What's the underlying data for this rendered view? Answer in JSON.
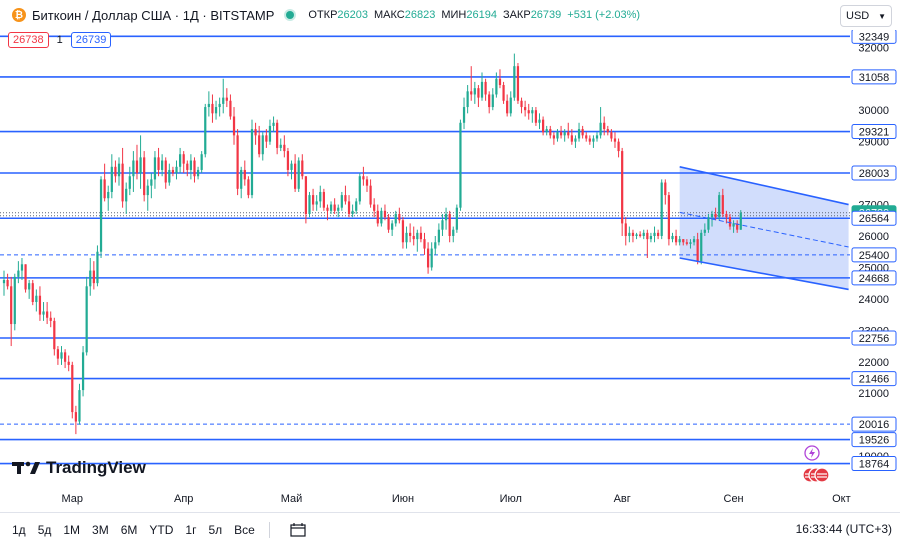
{
  "header": {
    "symbol_title": "Биткоин / Доллар США · 1Д · BITSTAMP",
    "ohlc": [
      {
        "key": "ОТКР",
        "value": "26203"
      },
      {
        "key": "МАКС",
        "value": "26823"
      },
      {
        "key": "МИН",
        "value": "26194"
      },
      {
        "key": "ЗАКР",
        "value": "26739"
      }
    ],
    "change": "+531 (+2.03%)",
    "currency": "USD"
  },
  "price_boxes": {
    "bid": "26738",
    "spread": "1",
    "ask": "26739"
  },
  "bottom_bar": {
    "ranges": [
      "1д",
      "5д",
      "1М",
      "3М",
      "6М",
      "YTD",
      "1г",
      "5л",
      "Все"
    ],
    "clock": "16:33:44 (UTC+3)"
  },
  "brand": "TradingView",
  "colors": {
    "up": "#22ab94",
    "down": "#f23645",
    "level": "#2962ff",
    "channel_fill": "#c2d2fb"
  },
  "chart_data": {
    "type": "candlestick",
    "title": "",
    "y_axis_ticks": [
      19000,
      20000,
      21000,
      22000,
      23000,
      24000,
      25000,
      26000,
      27000,
      28000,
      29000,
      30000,
      31000,
      32000
    ],
    "x_axis_ticks": [
      "Мар",
      "Апр",
      "Май",
      "Июн",
      "Июл",
      "Авг",
      "Сен",
      "Окт"
    ],
    "ylim": [
      18050,
      32550
    ],
    "horizontal_levels": [
      32349,
      31058,
      29321,
      28003,
      26564,
      25400,
      24668,
      22756,
      21466,
      20016,
      19526,
      18764
    ],
    "dashed_levels": [
      25400,
      20016
    ],
    "last_price": 26739,
    "axis_labels": [
      "32349",
      "31058",
      "29321",
      "28003",
      "26739",
      "26564",
      "25400",
      "24668",
      "22756",
      "21466",
      "20016",
      "19526",
      "18764"
    ],
    "channel": {
      "upper": [
        [
          "2023-08-17",
          28200
        ],
        [
          "2023-10-03",
          27000
        ]
      ],
      "lower": [
        [
          "2023-08-17",
          25300
        ],
        [
          "2023-10-03",
          24300
        ]
      ],
      "mid": [
        [
          "2023-08-17",
          26750
        ],
        [
          "2023-10-03",
          25650
        ]
      ]
    },
    "start_date": "2023-02-10",
    "candles": [
      [
        24500,
        24900,
        24100,
        24600
      ],
      [
        24600,
        24800,
        24300,
        24400
      ],
      [
        24400,
        24700,
        22500,
        23200
      ],
      [
        23200,
        24800,
        23000,
        24700
      ],
      [
        24700,
        25200,
        24500,
        24900
      ],
      [
        24900,
        25300,
        24600,
        25100
      ],
      [
        25100,
        25100,
        24200,
        24300
      ],
      [
        24300,
        24600,
        24000,
        24500
      ],
      [
        24500,
        24600,
        23800,
        23900
      ],
      [
        23900,
        24300,
        23600,
        24100
      ],
      [
        24100,
        24400,
        23300,
        23500
      ],
      [
        23500,
        23900,
        23300,
        23600
      ],
      [
        23600,
        23900,
        23200,
        23400
      ],
      [
        23400,
        23600,
        23100,
        23300
      ],
      [
        23300,
        23400,
        22200,
        22400
      ],
      [
        22400,
        22500,
        21900,
        22100
      ],
      [
        22100,
        22500,
        21900,
        22300
      ],
      [
        22300,
        22400,
        21800,
        22000
      ],
      [
        22000,
        22200,
        21700,
        21900
      ],
      [
        21900,
        22000,
        20200,
        20400
      ],
      [
        20400,
        20600,
        19700,
        20100
      ],
      [
        20100,
        21300,
        20000,
        21100
      ],
      [
        21100,
        22500,
        20900,
        22300
      ],
      [
        22300,
        24700,
        22200,
        24400
      ],
      [
        24400,
        25300,
        24100,
        24900
      ],
      [
        24900,
        25200,
        24300,
        24500
      ],
      [
        24500,
        25700,
        24400,
        25500
      ],
      [
        25500,
        27900,
        25300,
        27800
      ],
      [
        27800,
        28300,
        27100,
        27200
      ],
      [
        27200,
        27600,
        26800,
        27400
      ],
      [
        27400,
        28600,
        27200,
        28200
      ],
      [
        28200,
        28400,
        27700,
        27900
      ],
      [
        27900,
        28500,
        27600,
        28300
      ],
      [
        28300,
        28800,
        26900,
        27100
      ],
      [
        27100,
        27700,
        26700,
        27500
      ],
      [
        27500,
        28200,
        27300,
        27900
      ],
      [
        27900,
        28700,
        27400,
        28400
      ],
      [
        28400,
        28900,
        27800,
        28000
      ],
      [
        28000,
        29200,
        27500,
        28500
      ],
      [
        28500,
        28700,
        27100,
        27300
      ],
      [
        27300,
        27800,
        26800,
        27600
      ],
      [
        27600,
        28000,
        27200,
        27800
      ],
      [
        27800,
        28700,
        27500,
        28500
      ],
      [
        28500,
        28800,
        27900,
        28100
      ],
      [
        28100,
        28600,
        27900,
        28400
      ],
      [
        28400,
        28500,
        27500,
        27700
      ],
      [
        27700,
        28300,
        27600,
        28100
      ],
      [
        28100,
        28200,
        27900,
        28000
      ],
      [
        28000,
        28400,
        27800,
        28200
      ],
      [
        28200,
        28800,
        28000,
        28600
      ],
      [
        28600,
        28700,
        28000,
        28300
      ],
      [
        28300,
        28400,
        27900,
        28100
      ],
      [
        28100,
        28600,
        27800,
        28400
      ],
      [
        28400,
        28500,
        27700,
        27900
      ],
      [
        27900,
        28200,
        27800,
        28100
      ],
      [
        28100,
        28700,
        28000,
        28600
      ],
      [
        28600,
        30200,
        28500,
        30100
      ],
      [
        30100,
        30600,
        29800,
        30200
      ],
      [
        30200,
        30500,
        29600,
        29900
      ],
      [
        29900,
        30300,
        29700,
        30100
      ],
      [
        30100,
        30400,
        29800,
        30200
      ],
      [
        30200,
        31000,
        29900,
        30400
      ],
      [
        30400,
        30700,
        30100,
        30300
      ],
      [
        30300,
        30500,
        29700,
        29800
      ],
      [
        29800,
        30100,
        28900,
        29200
      ],
      [
        29200,
        29400,
        27300,
        27500
      ],
      [
        27500,
        28200,
        27200,
        28100
      ],
      [
        28100,
        28400,
        27600,
        27800
      ],
      [
        27800,
        27900,
        27200,
        27300
      ],
      [
        27300,
        29700,
        27200,
        29400
      ],
      [
        29400,
        29600,
        28900,
        29200
      ],
      [
        29200,
        29500,
        28500,
        28600
      ],
      [
        28600,
        29300,
        28400,
        29200
      ],
      [
        29200,
        29400,
        28800,
        29000
      ],
      [
        29000,
        29700,
        28900,
        29500
      ],
      [
        29500,
        29800,
        29300,
        29600
      ],
      [
        29600,
        29700,
        28600,
        28800
      ],
      [
        28800,
        29100,
        28700,
        28900
      ],
      [
        28900,
        29200,
        28500,
        28700
      ],
      [
        28700,
        28800,
        27900,
        28100
      ],
      [
        28100,
        28400,
        27800,
        28300
      ],
      [
        28300,
        28600,
        27400,
        27500
      ],
      [
        27500,
        28500,
        27400,
        28400
      ],
      [
        28400,
        28600,
        27800,
        27900
      ],
      [
        27900,
        27900,
        26400,
        26700
      ],
      [
        26700,
        27400,
        26600,
        27300
      ],
      [
        27300,
        27500,
        26800,
        27000
      ],
      [
        27000,
        27300,
        26800,
        27100
      ],
      [
        27100,
        27600,
        26900,
        27400
      ],
      [
        27400,
        27500,
        26800,
        26900
      ],
      [
        26900,
        27000,
        26500,
        26800
      ],
      [
        26800,
        27100,
        26700,
        27000
      ],
      [
        27000,
        27200,
        26700,
        26800
      ],
      [
        26800,
        27000,
        26600,
        26900
      ],
      [
        26900,
        27400,
        26800,
        27300
      ],
      [
        27300,
        27600,
        27000,
        27100
      ],
      [
        27100,
        27300,
        26600,
        26700
      ],
      [
        26700,
        27000,
        26600,
        26800
      ],
      [
        26800,
        27200,
        26700,
        27100
      ],
      [
        27100,
        28000,
        27000,
        27900
      ],
      [
        27900,
        28200,
        27600,
        27800
      ],
      [
        27800,
        27900,
        27400,
        27600
      ],
      [
        27600,
        27800,
        26900,
        27000
      ],
      [
        27000,
        27200,
        26600,
        26800
      ],
      [
        26800,
        27000,
        26300,
        26400
      ],
      [
        26400,
        26900,
        26300,
        26800
      ],
      [
        26800,
        27000,
        26500,
        26600
      ],
      [
        26600,
        26700,
        26100,
        26200
      ],
      [
        26200,
        26500,
        26000,
        26400
      ],
      [
        26400,
        26800,
        26300,
        26700
      ],
      [
        26700,
        26900,
        26400,
        26500
      ],
      [
        26500,
        26600,
        25600,
        25800
      ],
      [
        25800,
        26300,
        25600,
        26100
      ],
      [
        26100,
        26400,
        25800,
        26000
      ],
      [
        26000,
        26300,
        25700,
        25900
      ],
      [
        25900,
        26200,
        25500,
        26100
      ],
      [
        26100,
        26300,
        25800,
        25900
      ],
      [
        25900,
        26100,
        25400,
        25600
      ],
      [
        25600,
        25800,
        24800,
        25000
      ],
      [
        25000,
        25800,
        24900,
        25600
      ],
      [
        25600,
        26000,
        25400,
        25800
      ],
      [
        25800,
        26400,
        25700,
        26200
      ],
      [
        26200,
        26700,
        26000,
        26500
      ],
      [
        26500,
        26900,
        26200,
        26700
      ],
      [
        26700,
        26800,
        25800,
        26000
      ],
      [
        26000,
        26300,
        25800,
        26200
      ],
      [
        26200,
        27000,
        26100,
        26900
      ],
      [
        26900,
        29700,
        26800,
        29600
      ],
      [
        29600,
        30400,
        29400,
        30100
      ],
      [
        30100,
        30800,
        29900,
        30600
      ],
      [
        30600,
        31400,
        30300,
        30500
      ],
      [
        30500,
        30900,
        30200,
        30700
      ],
      [
        30700,
        30800,
        30100,
        30400
      ],
      [
        30400,
        31200,
        30300,
        30900
      ],
      [
        30900,
        31000,
        30300,
        30500
      ],
      [
        30500,
        30600,
        29900,
        30100
      ],
      [
        30100,
        30700,
        30000,
        30500
      ],
      [
        30500,
        31200,
        30400,
        31000
      ],
      [
        31000,
        31300,
        30700,
        30800
      ],
      [
        30800,
        30900,
        30200,
        30300
      ],
      [
        30300,
        30500,
        29800,
        29900
      ],
      [
        29900,
        30600,
        29800,
        30400
      ],
      [
        30400,
        31800,
        30300,
        31400
      ],
      [
        31400,
        31500,
        30200,
        30300
      ],
      [
        30300,
        30400,
        29900,
        30100
      ],
      [
        30100,
        30300,
        29800,
        30000
      ],
      [
        30000,
        30200,
        29700,
        29900
      ],
      [
        29900,
        30100,
        29600,
        30000
      ],
      [
        30000,
        30100,
        29500,
        29600
      ],
      [
        29600,
        29900,
        29400,
        29700
      ],
      [
        29700,
        29800,
        29200,
        29300
      ],
      [
        29300,
        29500,
        29200,
        29400
      ],
      [
        29400,
        29500,
        29100,
        29200
      ],
      [
        29200,
        29300,
        28900,
        29100
      ],
      [
        29100,
        29400,
        29000,
        29300
      ],
      [
        29300,
        29500,
        29100,
        29200
      ],
      [
        29200,
        29400,
        29000,
        29300
      ],
      [
        29300,
        29600,
        29100,
        29200
      ],
      [
        29200,
        29400,
        28900,
        29000
      ],
      [
        29000,
        29200,
        28800,
        29100
      ],
      [
        29100,
        29600,
        29000,
        29400
      ],
      [
        29400,
        29500,
        29100,
        29200
      ],
      [
        29200,
        29300,
        29000,
        29100
      ],
      [
        29100,
        29200,
        28900,
        29000
      ],
      [
        29000,
        29200,
        28800,
        29100
      ],
      [
        29100,
        29300,
        29000,
        29200
      ],
      [
        29200,
        30100,
        29100,
        29600
      ],
      [
        29600,
        29800,
        29200,
        29400
      ],
      [
        29400,
        29500,
        29200,
        29300
      ],
      [
        29300,
        29400,
        29000,
        29100
      ],
      [
        29100,
        29300,
        28800,
        29000
      ],
      [
        29000,
        29100,
        28500,
        28700
      ],
      [
        28700,
        28800,
        26000,
        26400
      ],
      [
        26400,
        26600,
        25700,
        26000
      ],
      [
        26000,
        26300,
        25800,
        26100
      ],
      [
        26100,
        26200,
        25800,
        26000
      ],
      [
        26000,
        26100,
        25900,
        26050
      ],
      [
        26050,
        26150,
        25950,
        26000
      ],
      [
        26000,
        26200,
        25900,
        26100
      ],
      [
        26100,
        26200,
        25300,
        25900
      ],
      [
        25900,
        26100,
        25800,
        26000
      ],
      [
        26000,
        26300,
        25800,
        26100
      ],
      [
        26100,
        26200,
        25900,
        26000
      ],
      [
        26000,
        27800,
        25900,
        27700
      ],
      [
        27700,
        27800,
        27000,
        27300
      ],
      [
        27300,
        27400,
        25700,
        25900
      ],
      [
        25900,
        26100,
        25800,
        26000
      ],
      [
        26000,
        26200,
        25700,
        25800
      ],
      [
        25800,
        26000,
        25700,
        25900
      ],
      [
        25900,
        25900,
        25700,
        25800
      ],
      [
        25800,
        25900,
        25700,
        25750
      ],
      [
        25750,
        25900,
        25600,
        25800
      ],
      [
        25800,
        26000,
        25700,
        25900
      ],
      [
        25900,
        26100,
        25100,
        25200
      ],
      [
        25200,
        26200,
        25100,
        26100
      ],
      [
        26100,
        26400,
        26000,
        26200
      ],
      [
        26200,
        26700,
        26100,
        26600
      ],
      [
        26600,
        26800,
        26300,
        26700
      ],
      [
        26700,
        26900,
        26500,
        26600
      ],
      [
        26600,
        27400,
        26500,
        27300
      ],
      [
        27300,
        27500,
        26600,
        26700
      ],
      [
        26700,
        26800,
        26400,
        26600
      ],
      [
        26600,
        26700,
        26200,
        26300
      ],
      [
        26300,
        26500,
        26100,
        26400
      ],
      [
        26400,
        26500,
        26100,
        26200
      ],
      [
        26200,
        26823,
        26194,
        26739
      ]
    ]
  }
}
